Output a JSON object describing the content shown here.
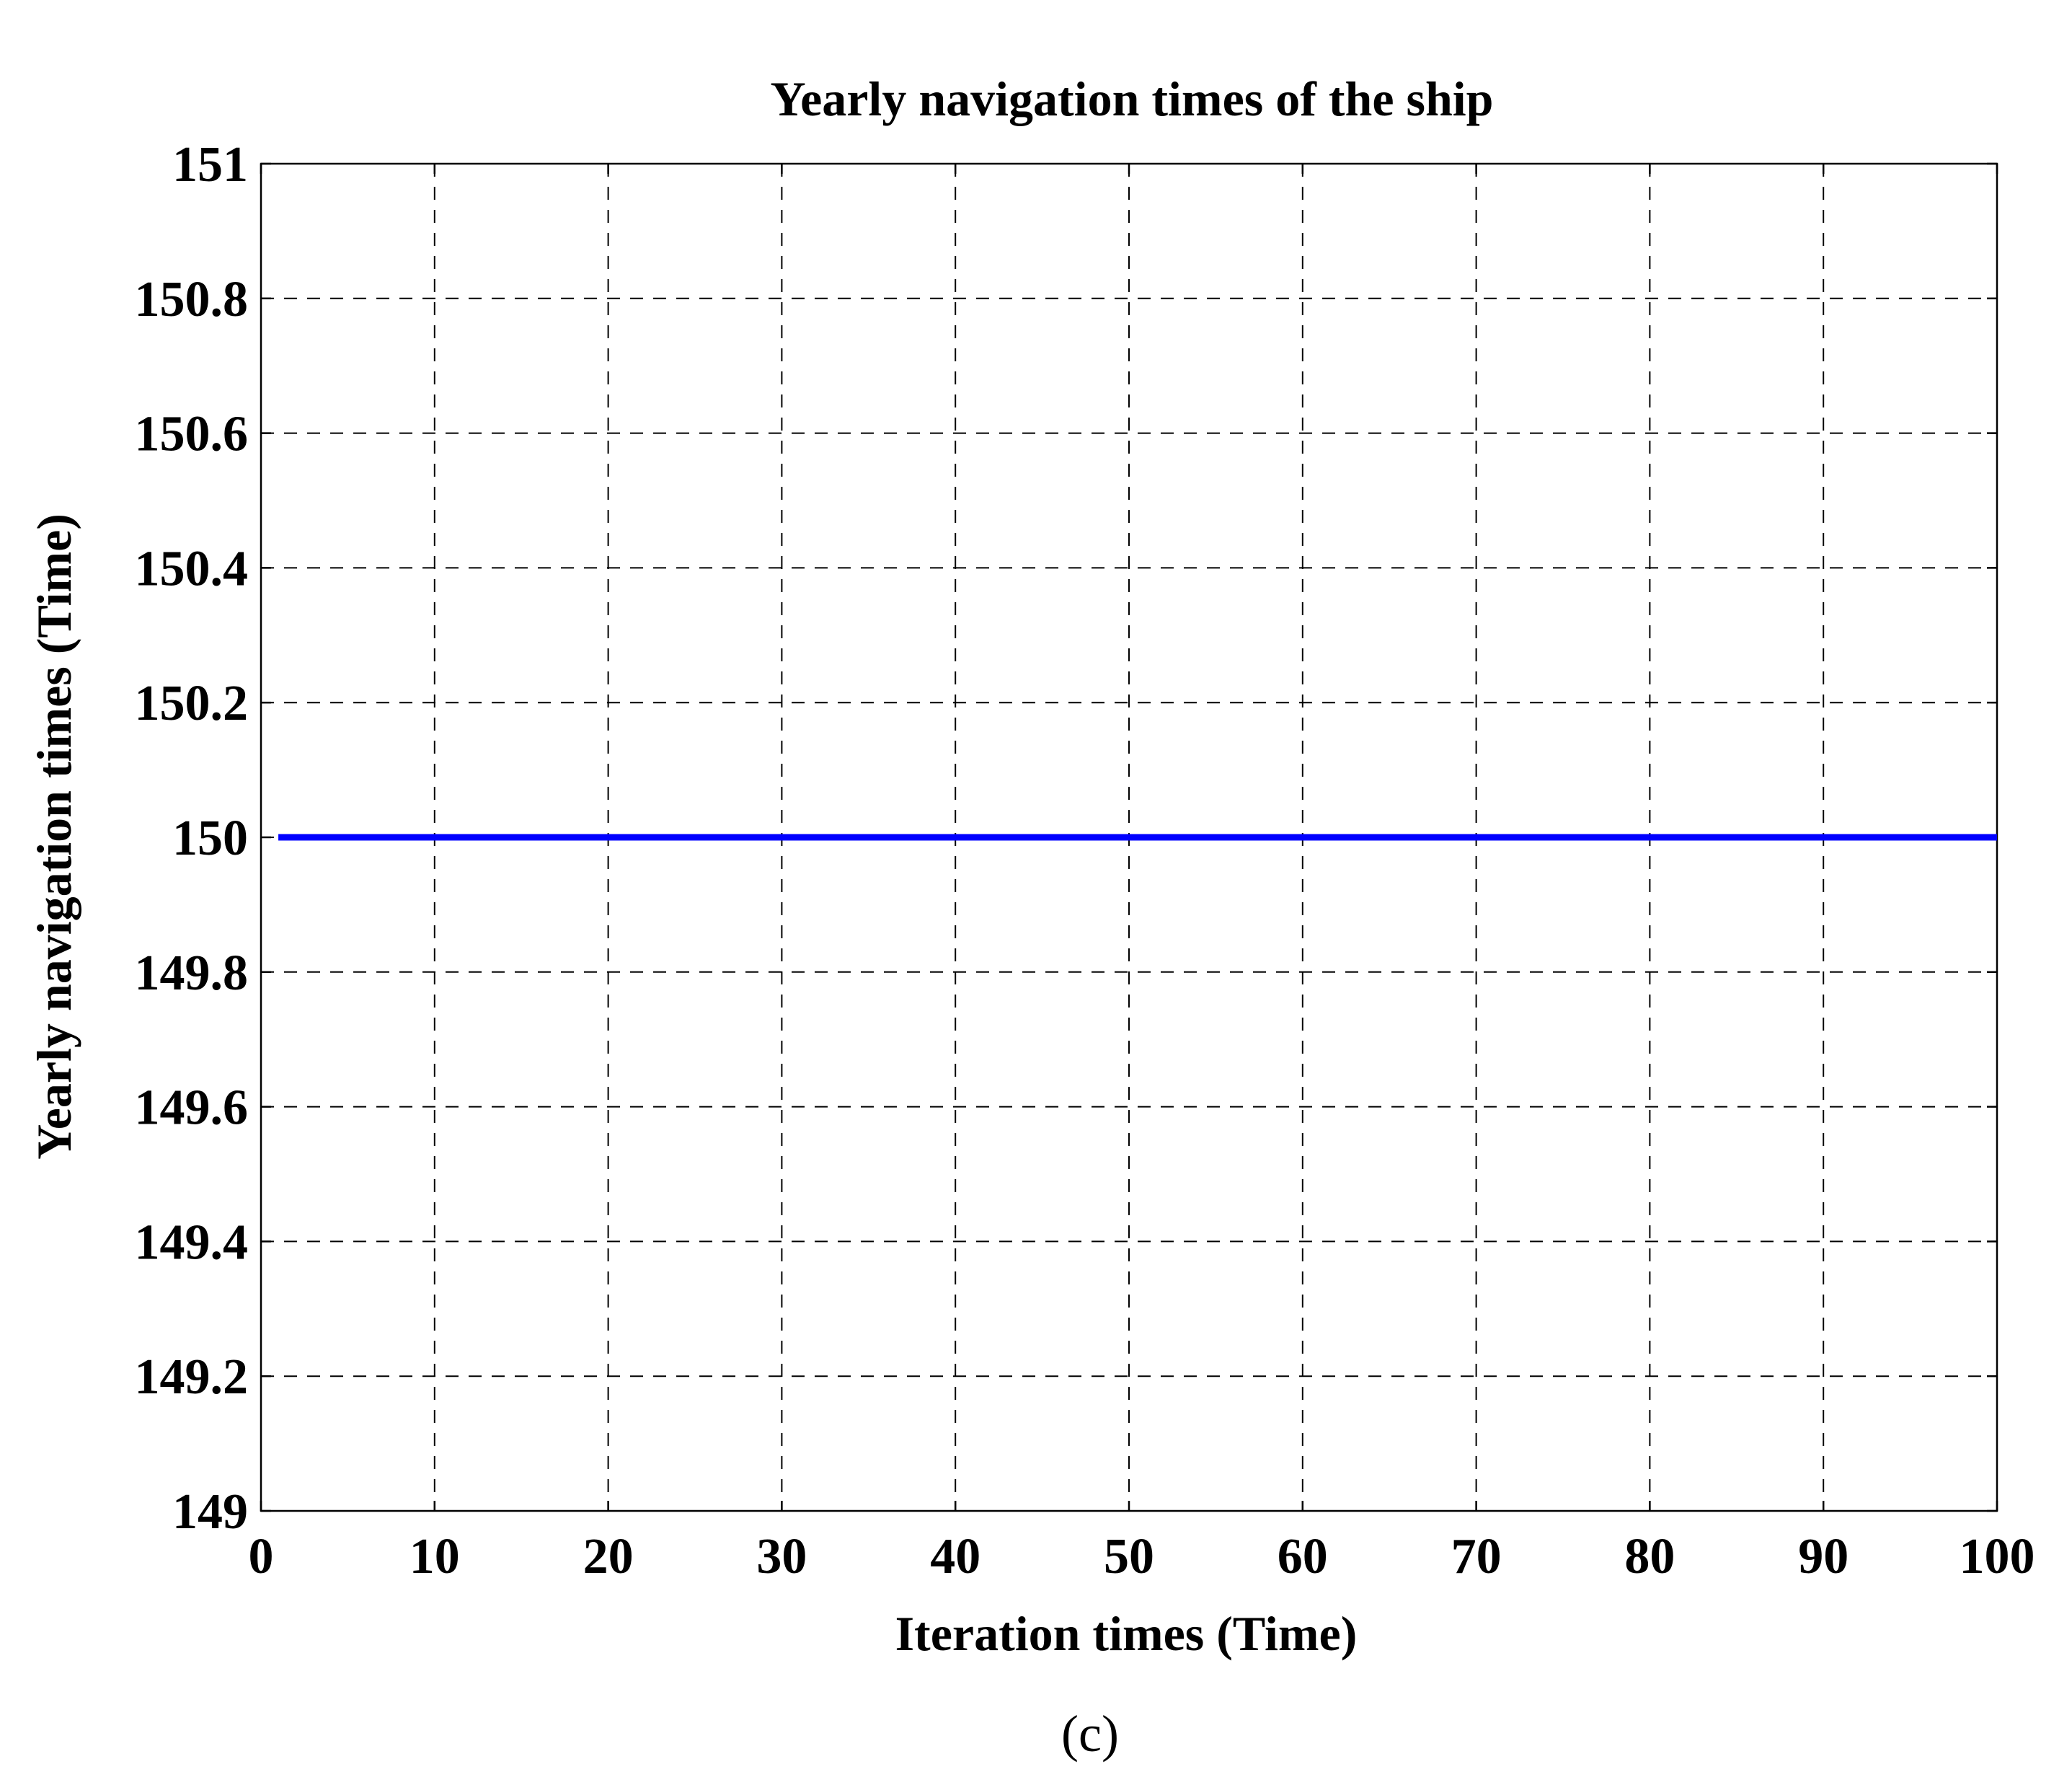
{
  "chart_data": {
    "type": "line",
    "title": "Yearly navigation times of the ship",
    "xlabel": "Iteration times (Time)",
    "ylabel": "Yearly navigation times (Time)",
    "xlim": [
      0,
      100
    ],
    "ylim": [
      149,
      151
    ],
    "xticks": [
      0,
      10,
      20,
      30,
      40,
      50,
      60,
      70,
      80,
      90,
      100
    ],
    "yticks": [
      149,
      149.2,
      149.4,
      149.6,
      149.8,
      150,
      150.2,
      150.4,
      150.6,
      150.8,
      151
    ],
    "xtick_labels": [
      "0",
      "10",
      "20",
      "30",
      "40",
      "50",
      "60",
      "70",
      "80",
      "90",
      "100"
    ],
    "ytick_labels": [
      "149",
      "149.2",
      "149.4",
      "149.6",
      "149.8",
      "150",
      "150.2",
      "150.4",
      "150.6",
      "150.8",
      "151"
    ],
    "grid": true,
    "grid_style": "dashed",
    "series": [
      {
        "color": "#0000ff",
        "x": [
          1,
          100
        ],
        "y": [
          150,
          150
        ]
      }
    ]
  },
  "caption": "(c)"
}
